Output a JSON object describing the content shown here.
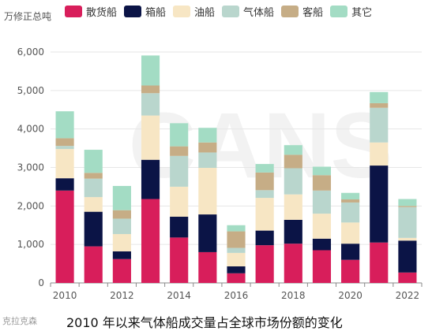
{
  "chart_data": {
    "type": "bar",
    "stacked": true,
    "title": "",
    "xlabel": "",
    "ylabel": "万修正总吨",
    "ylim": [
      0,
      6000
    ],
    "yticks": [
      0,
      1000,
      2000,
      3000,
      4000,
      5000,
      6000
    ],
    "ytick_labels": [
      "0",
      "1,000",
      "2,000",
      "3,000",
      "4,000",
      "5,000",
      "6,000"
    ],
    "grid": true,
    "legend_position": "top",
    "categories": [
      "2010",
      "2011",
      "2012",
      "2013",
      "2014",
      "2015",
      "2016",
      "2017",
      "2018",
      "2019",
      "2020",
      "2021",
      "2022"
    ],
    "xtick_labels": [
      "2010",
      "2012",
      "2014",
      "2016",
      "2018",
      "2020",
      "2022"
    ],
    "series": [
      {
        "name": "散货船",
        "color": "#d81e5b",
        "values": [
          2400,
          950,
          620,
          2180,
          1180,
          800,
          250,
          980,
          1020,
          850,
          600,
          1050,
          270
        ]
      },
      {
        "name": "箱船",
        "color": "#0b1446",
        "values": [
          320,
          900,
          200,
          1020,
          540,
          980,
          180,
          380,
          620,
          300,
          420,
          2000,
          830
        ]
      },
      {
        "name": "油船",
        "color": "#f7e6c4",
        "values": [
          760,
          380,
          450,
          1150,
          780,
          1210,
          350,
          850,
          660,
          650,
          550,
          600,
          70
        ]
      },
      {
        "name": "气体船",
        "color": "#b9d6cd",
        "values": [
          80,
          480,
          400,
          580,
          800,
          400,
          130,
          200,
          680,
          600,
          520,
          900,
          800
        ]
      },
      {
        "name": "客船",
        "color": "#c6ad86",
        "values": [
          200,
          150,
          220,
          200,
          250,
          260,
          430,
          460,
          350,
          400,
          80,
          120,
          30
        ]
      },
      {
        "name": "其它",
        "color": "#a3dcc4",
        "values": [
          700,
          600,
          630,
          780,
          600,
          380,
          160,
          220,
          250,
          220,
          170,
          290,
          180
        ]
      }
    ]
  },
  "caption": "2010 年以来气体船成交量占全球市场份额的变化",
  "watermark_text": "CANS",
  "source_logo": "克拉克森"
}
